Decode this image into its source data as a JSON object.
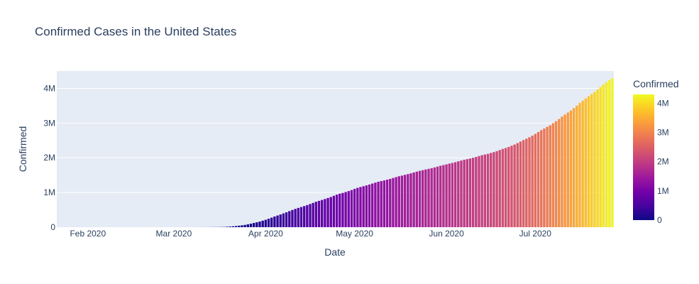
{
  "chart_data": {
    "type": "bar",
    "title": "Confirmed Cases in the United States",
    "xlabel": "Date",
    "ylabel": "Confirmed",
    "x_ticks": [
      "Feb 2020",
      "Mar 2020",
      "Apr 2020",
      "May 2020",
      "Jun 2020",
      "Jul 2020"
    ],
    "y_ticks": [
      "0",
      "1M",
      "2M",
      "3M",
      "4M"
    ],
    "x_range": [
      "2020-01-22",
      "2020-07-27"
    ],
    "ylim": [
      0,
      4500000
    ],
    "colorbar": {
      "title": "Confirmed",
      "ticks": [
        "0",
        "1M",
        "2M",
        "3M",
        "4M"
      ],
      "range": [
        0,
        4300000
      ],
      "colors": [
        "#0d0887",
        "#46039f",
        "#7201a8",
        "#9c179e",
        "#bd3786",
        "#d8576b",
        "#ed7953",
        "#fb9f3a",
        "#fdca26",
        "#f0f921"
      ]
    },
    "background": "#e5ecf6",
    "gridlines": true,
    "series": [
      {
        "x_start": "2020-01-22",
        "x_step_days": 1,
        "values": [
          1,
          1,
          2,
          2,
          5,
          5,
          5,
          5,
          5,
          7,
          8,
          8,
          11,
          11,
          11,
          11,
          11,
          11,
          11,
          11,
          12,
          12,
          13,
          13,
          13,
          13,
          13,
          13,
          13,
          13,
          15,
          15,
          15,
          51,
          51,
          57,
          58,
          60,
          68,
          74,
          98,
          118,
          149,
          217,
          262,
          402,
          518,
          583,
          959,
          1281,
          1663,
          2179,
          2727,
          3499,
          4632,
          6421,
          7786,
          13680,
          19101,
          25493,
          33276,
          43847,
          53740,
          65778,
          83836,
          101657,
          121465,
          140909,
          161831,
          188172,
          213242,
          243622,
          275367,
          308650,
          336802,
          366317,
          397121,
          428654,
          462780,
          496535,
          526396,
          555313,
          580619,
          607670,
          636350,
          667801,
          699706,
          732197,
          758809,
          784326,
          811865,
          840351,
          869170,
          905358,
          938154,
          965785,
          988197,
          1012582,
          1039909,
          1069424,
          1103461,
          1132539,
          1158040,
          1180375,
          1204351,
          1229331,
          1257023,
          1283929,
          1309550,
          1329260,
          1347881,
          1369376,
          1390406,
          1417774,
          1442824,
          1467820,
          1486757,
          1508308,
          1528568,
          1551853,
          1577147,
          1600937,
          1622612,
          1643246,
          1662302,
          1681212,
          1699933,
          1721750,
          1746019,
          1770165,
          1790191,
          1811277,
          1831821,
          1851520,
          1872660,
          1897838,
          1920061,
          1942363,
          1961185,
          1979850,
          2000464,
          2023347,
          2048986,
          2074526,
          2094058,
          2114026,
          2137731,
          2163290,
          2191052,
          2222579,
          2255328,
          2280912,
          2312302,
          2347022,
          2381361,
          2422310,
          2467554,
          2510151,
          2549069,
          2590668,
          2636538,
          2687588,
          2742049,
          2795361,
          2841241,
          2891124,
          2936077,
          2996098,
          3054699,
          3117946,
          3185737,
          3245925,
          3304942,
          3364157,
          3431574,
          3498902,
          3576221,
          3647715,
          3711413,
          3773260,
          3834677,
          3899211,
          3970121,
          4038816,
          4112531,
          4178970,
          4233923,
          4290337
        ]
      }
    ]
  }
}
